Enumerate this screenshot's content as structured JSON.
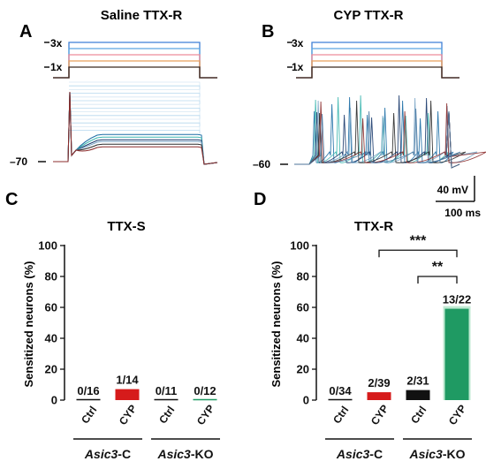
{
  "colors": {
    "ink": "#111111",
    "step_blue": "#3f7fd6",
    "step_lightblue": "#5aa4e0",
    "step_pink": "#ee8c9a",
    "step_orange": "#e8a15c",
    "step_dark": "#3a2a20",
    "bar_red": "#d61b1b",
    "bar_black": "#111111",
    "bar_green": "#1f9a63",
    "bar_green_glow": "#bfe9d2",
    "trace_colors": [
      "#1e6fa6",
      "#3db6b0",
      "#1c3c6e",
      "#7fa8c8",
      "#2a2a2a",
      "#8c2c2c",
      "#4a7aa3"
    ]
  },
  "panels": [
    {
      "letter": "A",
      "title": "Saline TTX-R",
      "step_labels": [
        "3x",
        "1x"
      ],
      "baseline_label": "–70"
    },
    {
      "letter": "B",
      "title": "CYP TTX-R",
      "step_labels": [
        "3x",
        "1x"
      ],
      "baseline_label": "–60",
      "scale_bar": {
        "voltage": "40 mV",
        "time": "100 ms"
      }
    }
  ],
  "chart_data": [
    {
      "panel": "C",
      "type": "bar",
      "title": "TTX-S",
      "ylabel": "Sensitized neurons (%)",
      "ylim": [
        0,
        100
      ],
      "yticks": [
        0,
        20,
        40,
        60,
        80,
        100
      ],
      "categories": [
        "Ctrl",
        "CYP",
        "Ctrl",
        "CYP"
      ],
      "groups": [
        "Asic3-C",
        "Asic3-KO"
      ],
      "group_labels": [
        {
          "italic": "Asic3",
          "rest": "-C"
        },
        {
          "italic": "Asic3",
          "rest": "-KO"
        }
      ],
      "values": [
        0,
        7.1,
        0,
        0
      ],
      "bar_labels": [
        "0/16",
        "1/14",
        "0/11",
        "0/12"
      ],
      "bar_colors": [
        "#111111",
        "#d61b1b",
        "#111111",
        "#1f9a63"
      ],
      "significance": []
    },
    {
      "panel": "D",
      "type": "bar",
      "title": "TTX-R",
      "ylabel": "Sensitized neurons (%)",
      "ylim": [
        0,
        100
      ],
      "yticks": [
        0,
        20,
        40,
        60,
        80,
        100
      ],
      "categories": [
        "Ctrl",
        "CYP",
        "Ctrl",
        "CYP"
      ],
      "groups": [
        "Asic3-C",
        "Asic3-KO"
      ],
      "group_labels": [
        {
          "italic": "Asic3",
          "rest": "-C"
        },
        {
          "italic": "Asic3",
          "rest": "-KO"
        }
      ],
      "values": [
        0,
        5.1,
        6.5,
        59.1
      ],
      "bar_labels": [
        "0/34",
        "2/39",
        "2/31",
        "13/22"
      ],
      "bar_colors": [
        "#111111",
        "#d61b1b",
        "#111111",
        "#1f9a63"
      ],
      "significance": [
        {
          "from": 1,
          "to": 3,
          "label": "***",
          "level": 97
        },
        {
          "from": 2,
          "to": 3,
          "label": "**",
          "level": 80
        }
      ]
    }
  ]
}
